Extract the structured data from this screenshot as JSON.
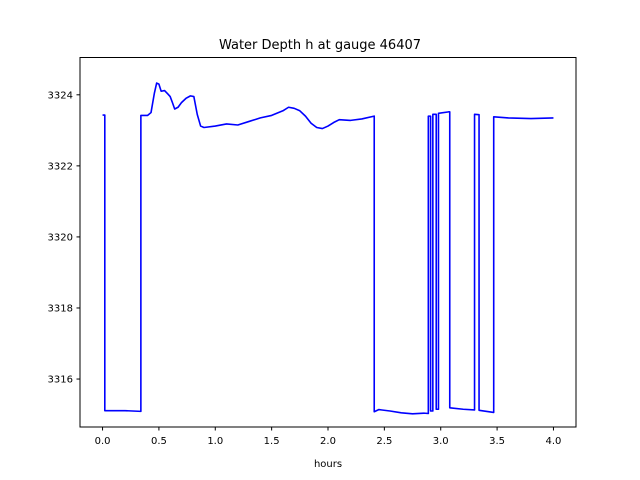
{
  "chart_data": {
    "type": "line",
    "title": "Water Depth h at gauge 46407",
    "xlabel": "hours",
    "ylabel": "",
    "xlim": [
      -0.2,
      4.2
    ],
    "ylim": [
      3314.65,
      3325.05
    ],
    "x_ticks": [
      0.0,
      0.5,
      1.0,
      1.5,
      2.0,
      2.5,
      3.0,
      3.5,
      4.0
    ],
    "x_tick_labels": [
      "0.0",
      "0.5",
      "1.0",
      "1.5",
      "2.0",
      "2.5",
      "3.0",
      "3.5",
      "4.0"
    ],
    "y_ticks": [
      3316,
      3318,
      3320,
      3322,
      3324
    ],
    "y_tick_labels": [
      "3316",
      "3318",
      "3320",
      "3322",
      "3324"
    ],
    "grid": false,
    "series": [
      {
        "color": "#0000ff",
        "points": [
          [
            0.0,
            3323.43
          ],
          [
            0.02,
            3323.43
          ],
          [
            0.02,
            3315.11
          ],
          [
            0.2,
            3315.11
          ],
          [
            0.34,
            3315.09
          ],
          [
            0.34,
            3323.42
          ],
          [
            0.4,
            3323.42
          ],
          [
            0.43,
            3323.5
          ],
          [
            0.46,
            3324.05
          ],
          [
            0.48,
            3324.33
          ],
          [
            0.5,
            3324.3
          ],
          [
            0.52,
            3324.1
          ],
          [
            0.55,
            3324.12
          ],
          [
            0.58,
            3324.02
          ],
          [
            0.6,
            3323.95
          ],
          [
            0.62,
            3323.78
          ],
          [
            0.64,
            3323.6
          ],
          [
            0.67,
            3323.65
          ],
          [
            0.7,
            3323.78
          ],
          [
            0.74,
            3323.9
          ],
          [
            0.78,
            3323.97
          ],
          [
            0.81,
            3323.95
          ],
          [
            0.84,
            3323.45
          ],
          [
            0.87,
            3323.12
          ],
          [
            0.9,
            3323.08
          ],
          [
            1.0,
            3323.12
          ],
          [
            1.1,
            3323.18
          ],
          [
            1.2,
            3323.15
          ],
          [
            1.3,
            3323.25
          ],
          [
            1.4,
            3323.35
          ],
          [
            1.5,
            3323.42
          ],
          [
            1.6,
            3323.55
          ],
          [
            1.65,
            3323.65
          ],
          [
            1.7,
            3323.62
          ],
          [
            1.75,
            3323.55
          ],
          [
            1.8,
            3323.4
          ],
          [
            1.85,
            3323.2
          ],
          [
            1.9,
            3323.08
          ],
          [
            1.95,
            3323.05
          ],
          [
            2.0,
            3323.12
          ],
          [
            2.05,
            3323.22
          ],
          [
            2.1,
            3323.3
          ],
          [
            2.2,
            3323.28
          ],
          [
            2.3,
            3323.32
          ],
          [
            2.41,
            3323.4
          ],
          [
            2.41,
            3315.08
          ],
          [
            2.45,
            3315.14
          ],
          [
            2.55,
            3315.1
          ],
          [
            2.65,
            3315.05
          ],
          [
            2.75,
            3315.02
          ],
          [
            2.85,
            3315.04
          ],
          [
            2.89,
            3315.03
          ],
          [
            2.89,
            3323.4
          ],
          [
            2.91,
            3323.4
          ],
          [
            2.91,
            3315.1
          ],
          [
            2.93,
            3315.1
          ],
          [
            2.93,
            3323.45
          ],
          [
            2.96,
            3323.45
          ],
          [
            2.96,
            3315.15
          ],
          [
            2.98,
            3315.15
          ],
          [
            2.98,
            3323.48
          ],
          [
            3.07,
            3323.52
          ],
          [
            3.08,
            3323.52
          ],
          [
            3.08,
            3315.19
          ],
          [
            3.2,
            3315.15
          ],
          [
            3.3,
            3315.13
          ],
          [
            3.3,
            3323.45
          ],
          [
            3.34,
            3323.44
          ],
          [
            3.34,
            3315.12
          ],
          [
            3.47,
            3315.06
          ],
          [
            3.47,
            3323.38
          ],
          [
            3.6,
            3323.35
          ],
          [
            3.8,
            3323.33
          ],
          [
            4.0,
            3323.35
          ]
        ]
      }
    ]
  }
}
